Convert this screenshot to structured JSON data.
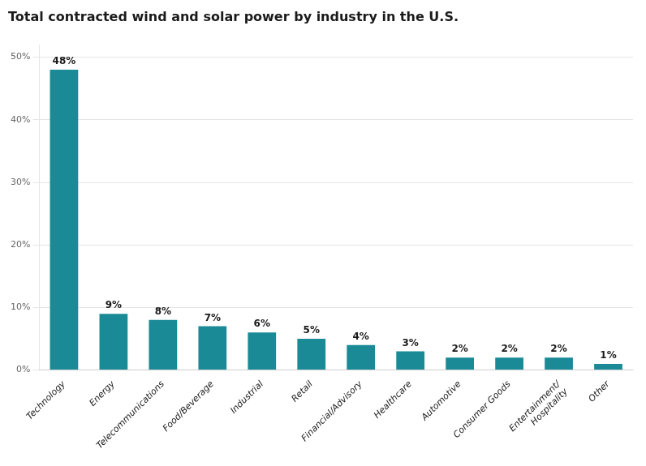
{
  "chart_data": {
    "type": "bar",
    "title": "Total contracted wind and solar power by industry in the U.S.",
    "categories": [
      "Technology",
      "Energy",
      "Telecommunications",
      "Food/Beverage",
      "Industrial",
      "Retail",
      "Financial/Advisory",
      "Healthcare",
      "Automotive",
      "Consumer Goods",
      "Entertainment/\nHospitality",
      "Other"
    ],
    "values": [
      48,
      9,
      8,
      7,
      6,
      5,
      4,
      3,
      2,
      2,
      2,
      1
    ],
    "value_labels": [
      "48%",
      "9%",
      "8%",
      "7%",
      "6%",
      "5%",
      "4%",
      "3%",
      "2%",
      "2%",
      "2%",
      "1%"
    ],
    "color": "#1a8a96",
    "ylim": [
      0,
      52
    ],
    "yticks": [
      {
        "value": 0,
        "label": "0%"
      },
      {
        "value": 10,
        "label": "10%"
      },
      {
        "value": 20,
        "label": "20%"
      },
      {
        "value": 30,
        "label": "30%"
      },
      {
        "value": 40,
        "label": "40%"
      },
      {
        "value": 50,
        "label": "50%"
      }
    ],
    "grid": true,
    "data_labels": true
  }
}
